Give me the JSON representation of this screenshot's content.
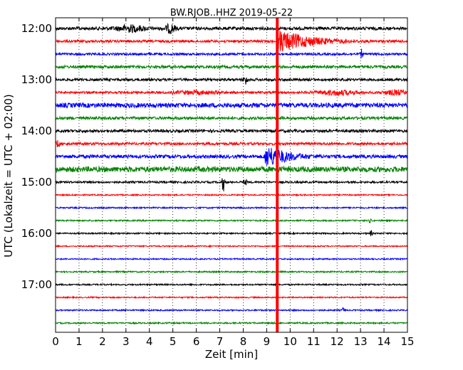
{
  "chart_data": {
    "type": "line",
    "title": "BW.RJOB..HHZ 2019-05-22",
    "xlabel": "Zeit  [min]",
    "ylabel": "UTC (Lokalzeit = UTC + 02:00)",
    "xlim": [
      0,
      15
    ],
    "x_ticks": [
      "0",
      "1",
      "2",
      "3",
      "4",
      "5",
      "6",
      "7",
      "8",
      "9",
      "10",
      "11",
      "12",
      "13",
      "14",
      "15"
    ],
    "y_ticks": [
      "12:00",
      "13:00",
      "14:00",
      "15:00",
      "16:00",
      "17:00"
    ],
    "grid": true,
    "trace_interval_min": 15,
    "trace_colors": [
      "#000000",
      "#ff0000",
      "#0000ff",
      "#008000"
    ],
    "traces": [
      {
        "start": "12:00",
        "noise": 2.2,
        "events": [
          {
            "t": 3.2,
            "a": 4,
            "w": 0.6
          },
          {
            "t": 4.9,
            "a": 6,
            "w": 0.2
          }
        ]
      },
      {
        "start": "12:15",
        "noise": 1.8,
        "events": [
          {
            "t": 9.55,
            "a": 14,
            "w": 0.5,
            "decay": 1.5
          }
        ]
      },
      {
        "start": "12:30",
        "noise": 1.6,
        "events": [
          {
            "t": 13.05,
            "a": 6,
            "w": 0.05
          }
        ]
      },
      {
        "start": "12:45",
        "noise": 2.0,
        "events": []
      },
      {
        "start": "13:00",
        "noise": 1.8,
        "events": [
          {
            "t": 8.1,
            "a": 7,
            "w": 0.08
          }
        ]
      },
      {
        "start": "13:15",
        "noise": 1.6,
        "events": [
          {
            "t": 6.0,
            "a": 2,
            "w": 1.0
          },
          {
            "t": 12.0,
            "a": 3,
            "w": 0.8
          },
          {
            "t": 14.5,
            "a": 3,
            "w": 0.5
          }
        ]
      },
      {
        "start": "13:30",
        "noise": 3.2,
        "events": []
      },
      {
        "start": "13:45",
        "noise": 2.0,
        "events": []
      },
      {
        "start": "14:00",
        "noise": 2.0,
        "events": []
      },
      {
        "start": "14:15",
        "noise": 1.8,
        "events": [
          {
            "t": 0.1,
            "a": 4,
            "w": 0.1
          }
        ]
      },
      {
        "start": "14:30",
        "noise": 2.4,
        "events": [
          {
            "t": 9.0,
            "a": 14,
            "w": 0.5,
            "decay": 0.9
          }
        ]
      },
      {
        "start": "14:45",
        "noise": 3.8,
        "events": []
      },
      {
        "start": "15:00",
        "noise": 1.4,
        "events": [
          {
            "t": 7.15,
            "a": 13,
            "w": 0.05
          },
          {
            "t": 8.1,
            "a": 3,
            "w": 0.08
          }
        ]
      },
      {
        "start": "15:15",
        "noise": 0.9,
        "events": []
      },
      {
        "start": "15:30",
        "noise": 1.0,
        "events": []
      },
      {
        "start": "15:45",
        "noise": 1.0,
        "events": [
          {
            "t": 13.4,
            "a": 3,
            "w": 0.05
          }
        ]
      },
      {
        "start": "16:00",
        "noise": 1.0,
        "events": [
          {
            "t": 13.45,
            "a": 4,
            "w": 0.05
          }
        ]
      },
      {
        "start": "16:15",
        "noise": 0.9,
        "events": []
      },
      {
        "start": "16:30",
        "noise": 0.9,
        "events": []
      },
      {
        "start": "16:45",
        "noise": 1.0,
        "events": []
      },
      {
        "start": "17:00",
        "noise": 1.0,
        "events": []
      },
      {
        "start": "17:15",
        "noise": 0.9,
        "events": []
      },
      {
        "start": "17:30",
        "noise": 1.0,
        "events": [
          {
            "t": 12.25,
            "a": 3,
            "w": 0.05
          }
        ]
      },
      {
        "start": "17:45",
        "noise": 1.0,
        "events": []
      }
    ],
    "vertical_marker": {
      "x": 9.45,
      "color": "#ff0000"
    }
  }
}
